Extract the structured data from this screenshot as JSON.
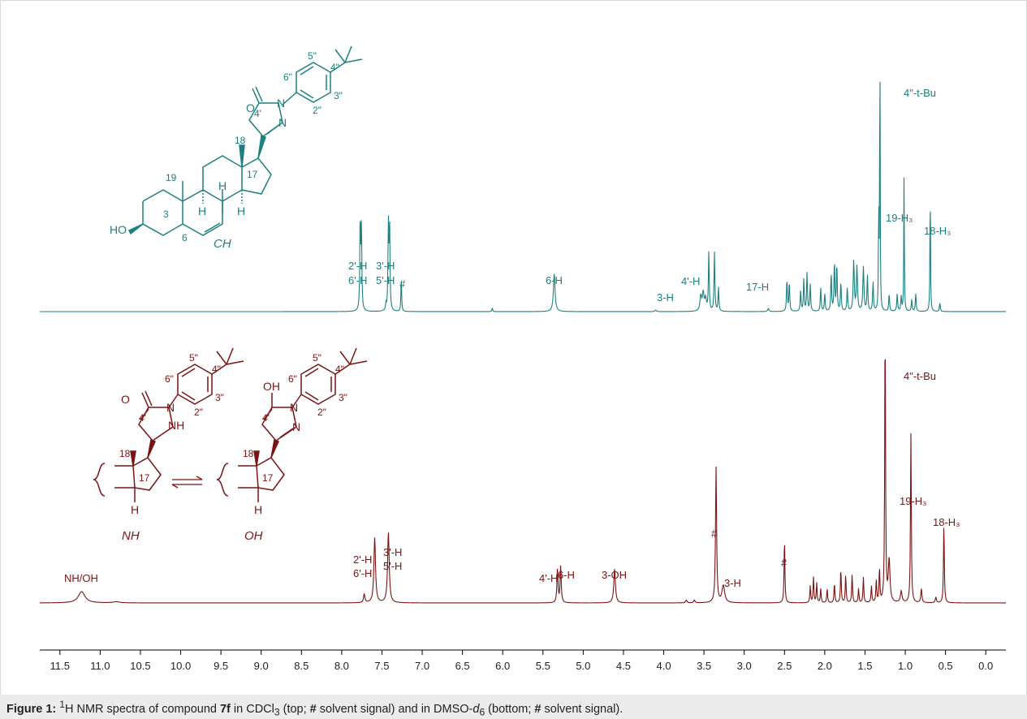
{
  "chart_data": {
    "type": "line",
    "xaxis": {
      "range": [
        11.75,
        -0.25
      ],
      "reversed": true,
      "ticks": [
        11.5,
        11.0,
        10.5,
        10.0,
        9.5,
        9.0,
        8.5,
        8.0,
        7.5,
        7.0,
        6.5,
        6.0,
        5.5,
        5.0,
        4.5,
        4.0,
        3.5,
        3.0,
        2.5,
        2.0,
        1.5,
        1.0,
        0.5,
        0.0
      ],
      "tick_labels": [
        "11.5",
        "11.0",
        "10.5",
        "10.0",
        "9.5",
        "9.0",
        "8.5",
        "8.0",
        "7.5",
        "7.0",
        "6.5",
        "6.0",
        "5.5",
        "5.0",
        "4.5",
        "4.0",
        "3.5",
        "3.0",
        "2.5",
        "2.0",
        "1.5",
        "1.0",
        "0.5",
        "0.0"
      ]
    },
    "grid": false,
    "series": [
      {
        "key": "top",
        "color": "#1d8080",
        "range": [
          11.75,
          -0.25
        ],
        "peaks": [
          {
            "ppm": 7.77,
            "h": 0.3,
            "w": 0.006
          },
          {
            "ppm": 7.755,
            "h": 0.28,
            "w": 0.006
          },
          {
            "ppm": 7.42,
            "h": 0.29,
            "w": 0.006
          },
          {
            "ppm": 7.405,
            "h": 0.28,
            "w": 0.006
          },
          {
            "ppm": 7.45,
            "h": 0.02,
            "w": 0.006
          },
          {
            "ppm": 7.26,
            "h": 0.12,
            "w": 0.005
          },
          {
            "ppm": 6.13,
            "h": 0.012,
            "w": 0.006
          },
          {
            "ppm": 5.36,
            "h": 0.13,
            "w": 0.012
          },
          {
            "ppm": 4.1,
            "h": 0.005,
            "w": 0.01
          },
          {
            "ppm": 3.54,
            "h": 0.05,
            "w": 0.012
          },
          {
            "ppm": 3.51,
            "h": 0.06,
            "w": 0.012
          },
          {
            "ppm": 3.48,
            "h": 0.04,
            "w": 0.012
          },
          {
            "ppm": 3.44,
            "h": 0.2,
            "w": 0.006
          },
          {
            "ppm": 3.37,
            "h": 0.2,
            "w": 0.006
          },
          {
            "ppm": 3.32,
            "h": 0.08,
            "w": 0.006
          },
          {
            "ppm": 2.7,
            "h": 0.01,
            "w": 0.01
          },
          {
            "ppm": 2.47,
            "h": 0.11,
            "w": 0.006
          },
          {
            "ppm": 2.44,
            "h": 0.1,
            "w": 0.006
          },
          {
            "ppm": 2.3,
            "h": 0.07,
            "w": 0.006
          },
          {
            "ppm": 2.26,
            "h": 0.11,
            "w": 0.006
          },
          {
            "ppm": 2.22,
            "h": 0.13,
            "w": 0.006
          },
          {
            "ppm": 2.18,
            "h": 0.09,
            "w": 0.006
          },
          {
            "ppm": 2.05,
            "h": 0.08,
            "w": 0.006
          },
          {
            "ppm": 2.0,
            "h": 0.06,
            "w": 0.006
          },
          {
            "ppm": 1.92,
            "h": 0.13,
            "w": 0.006
          },
          {
            "ppm": 1.88,
            "h": 0.17,
            "w": 0.006
          },
          {
            "ppm": 1.85,
            "h": 0.16,
            "w": 0.006
          },
          {
            "ppm": 1.8,
            "h": 0.1,
            "w": 0.006
          },
          {
            "ppm": 1.72,
            "h": 0.08,
            "w": 0.006
          },
          {
            "ppm": 1.64,
            "h": 0.17,
            "w": 0.008
          },
          {
            "ppm": 1.6,
            "h": 0.15,
            "w": 0.008
          },
          {
            "ppm": 1.52,
            "h": 0.15,
            "w": 0.008
          },
          {
            "ppm": 1.47,
            "h": 0.12,
            "w": 0.006
          },
          {
            "ppm": 1.4,
            "h": 0.1,
            "w": 0.006
          },
          {
            "ppm": 1.33,
            "h": 0.35,
            "w": 0.004
          },
          {
            "ppm": 1.315,
            "h": 1.0,
            "w": 0.0035
          },
          {
            "ppm": 1.2,
            "h": 0.06,
            "w": 0.006
          },
          {
            "ppm": 1.1,
            "h": 0.06,
            "w": 0.006
          },
          {
            "ppm": 1.05,
            "h": 0.05,
            "w": 0.006
          },
          {
            "ppm": 1.015,
            "h": 0.46,
            "w": 0.004
          },
          {
            "ppm": 0.92,
            "h": 0.04,
            "w": 0.006
          },
          {
            "ppm": 0.87,
            "h": 0.06,
            "w": 0.006
          },
          {
            "ppm": 0.69,
            "h": 0.44,
            "w": 0.004
          },
          {
            "ppm": 0.57,
            "h": 0.03,
            "w": 0.006
          }
        ]
      },
      {
        "key": "bottom",
        "color": "#7a1414",
        "range": [
          11.75,
          -0.25
        ],
        "peaks": [
          {
            "ppm": 11.23,
            "h": 0.04,
            "w": 0.05
          },
          {
            "ppm": 10.8,
            "h": 0.004,
            "w": 0.05
          },
          {
            "ppm": 7.72,
            "h": 0.03,
            "w": 0.01
          },
          {
            "ppm": 7.59,
            "h": 0.23,
            "w": 0.012
          },
          {
            "ppm": 7.42,
            "h": 0.25,
            "w": 0.012
          },
          {
            "ppm": 5.32,
            "h": 0.12,
            "w": 0.008
          },
          {
            "ppm": 5.28,
            "h": 0.13,
            "w": 0.008
          },
          {
            "ppm": 4.61,
            "h": 0.12,
            "w": 0.012
          },
          {
            "ppm": 3.72,
            "h": 0.01,
            "w": 0.01
          },
          {
            "ppm": 3.62,
            "h": 0.01,
            "w": 0.01
          },
          {
            "ppm": 3.35,
            "h": 0.48,
            "w": 0.008
          },
          {
            "ppm": 3.26,
            "h": 0.06,
            "w": 0.02
          },
          {
            "ppm": 2.5,
            "h": 0.23,
            "w": 0.006
          },
          {
            "ppm": 2.18,
            "h": 0.06,
            "w": 0.006
          },
          {
            "ppm": 2.14,
            "h": 0.09,
            "w": 0.006
          },
          {
            "ppm": 2.1,
            "h": 0.07,
            "w": 0.006
          },
          {
            "ppm": 2.05,
            "h": 0.05,
            "w": 0.006
          },
          {
            "ppm": 1.97,
            "h": 0.05,
            "w": 0.006
          },
          {
            "ppm": 1.88,
            "h": 0.07,
            "w": 0.006
          },
          {
            "ppm": 1.8,
            "h": 0.12,
            "w": 0.006
          },
          {
            "ppm": 1.74,
            "h": 0.1,
            "w": 0.006
          },
          {
            "ppm": 1.66,
            "h": 0.1,
            "w": 0.006
          },
          {
            "ppm": 1.58,
            "h": 0.05,
            "w": 0.006
          },
          {
            "ppm": 1.52,
            "h": 0.09,
            "w": 0.006
          },
          {
            "ppm": 1.42,
            "h": 0.06,
            "w": 0.006
          },
          {
            "ppm": 1.36,
            "h": 0.08,
            "w": 0.006
          },
          {
            "ppm": 1.32,
            "h": 0.12,
            "w": 0.006
          },
          {
            "ppm": 1.25,
            "h": 1.0,
            "w": 0.006
          },
          {
            "ppm": 1.2,
            "h": 0.15,
            "w": 0.012
          },
          {
            "ppm": 1.05,
            "h": 0.04,
            "w": 0.012
          },
          {
            "ppm": 0.93,
            "h": 0.6,
            "w": 0.006
          },
          {
            "ppm": 0.8,
            "h": 0.05,
            "w": 0.008
          },
          {
            "ppm": 0.62,
            "h": 0.02,
            "w": 0.008
          },
          {
            "ppm": 0.52,
            "h": 0.28,
            "w": 0.006
          }
        ]
      }
    ],
    "annotations": {
      "top": [
        {
          "text": "4\"-t-Bu",
          "ppm": 1.0
        },
        {
          "text": "19-H₃",
          "ppm": 0.99
        },
        {
          "text": "18-H₃",
          "ppm": 0.66
        },
        {
          "text": "2'-H",
          "ppm": 7.77
        },
        {
          "text": "6'-H",
          "ppm": 7.77
        },
        {
          "text": "3'-H",
          "ppm": 7.42
        },
        {
          "text": "5'-H",
          "ppm": 7.42
        },
        {
          "text": "#",
          "ppm": 7.26
        },
        {
          "text": "6-H",
          "ppm": 5.36
        },
        {
          "text": "3-H",
          "ppm": 3.52
        },
        {
          "text": "4'-H",
          "ppm": 3.38
        },
        {
          "text": "17-H",
          "ppm": 2.42
        }
      ],
      "bottom": [
        {
          "text": "4\"-t-Bu",
          "ppm": 1.0
        },
        {
          "text": "19-H₃",
          "ppm": 0.95
        },
        {
          "text": "18-H₃",
          "ppm": 0.52
        },
        {
          "text": "NH/OH",
          "ppm": 11.23
        },
        {
          "text": "2'-H",
          "ppm": 7.59
        },
        {
          "text": "6'-H",
          "ppm": 7.59
        },
        {
          "text": "3'-H",
          "ppm": 7.42
        },
        {
          "text": "5'-H",
          "ppm": 7.42
        },
        {
          "text": "4'-H",
          "ppm": 5.32
        },
        {
          "text": "6-H",
          "ppm": 5.28
        },
        {
          "text": "3-OH",
          "ppm": 4.61
        },
        {
          "text": "#",
          "ppm": 3.35
        },
        {
          "text": "3-H",
          "ppm": 3.26
        },
        {
          "text": "#",
          "ppm": 2.5
        }
      ]
    }
  },
  "structures": {
    "top": {
      "labels": [
        "O",
        "N",
        "N",
        "4'",
        "5\"",
        "4\"",
        "6\"",
        "3\"",
        "2\"",
        "18",
        "19",
        "17",
        "H",
        "H",
        "H",
        "3",
        "HO",
        "6",
        "CH"
      ]
    },
    "bottom_nh": {
      "labels": [
        "O",
        "N",
        "NH",
        "4'",
        "5\"",
        "4\"",
        "6\"",
        "3\"",
        "2\"",
        "18",
        "17",
        "H",
        "NH"
      ]
    },
    "bottom_oh": {
      "labels": [
        "OH",
        "N",
        "N",
        "4'",
        "5\"",
        "4\"",
        "6\"",
        "3\"",
        "2\"",
        "18",
        "17",
        "H",
        "OH"
      ]
    }
  },
  "caption": {
    "label": "Figure 1:",
    "sup": "1",
    "text_a": "H NMR spectra of compound ",
    "compound": "7f",
    "text_b": " in CDCl",
    "sub3": "3",
    "text_c": " (top; ",
    "hash1": "#",
    "text_d": " solvent signal) and in DMSO-",
    "d": "d",
    "sub6": "6",
    "text_e": " (bottom; ",
    "hash2": "#",
    "text_f": " solvent signal)."
  }
}
